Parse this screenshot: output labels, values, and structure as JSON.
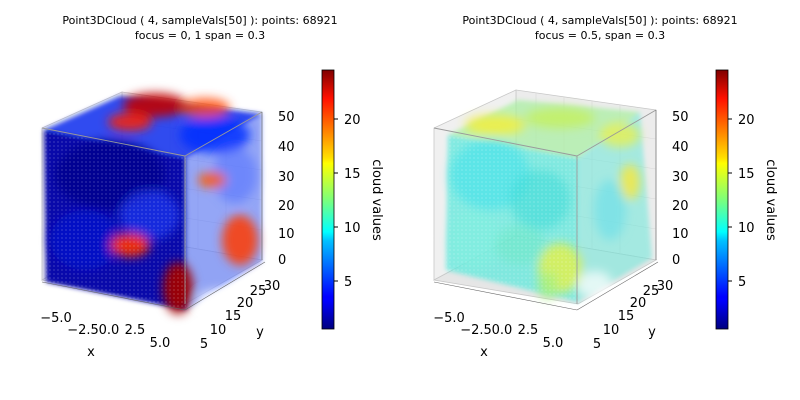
{
  "chart_data": [
    {
      "type": "scatter3d",
      "title_line1": "Point3DCloud ( 4, sampleVals[50] ):  points: 68921",
      "title_line2": "focus = 0, 1  span = 0.3",
      "xlabel": "x",
      "ylabel": "y",
      "zlabel": "",
      "x_ticks": [
        "−5.0",
        "−2.5",
        "0.0",
        "2.5",
        "5.0"
      ],
      "y_ticks": [
        "5",
        "10",
        "15",
        "20",
        "25",
        "30"
      ],
      "z_ticks": [
        "0",
        "10",
        "20",
        "30",
        "40",
        "50"
      ],
      "xlim": [
        -6,
        6
      ],
      "ylim": [
        5,
        30
      ],
      "zlim": [
        0,
        50
      ],
      "colorbar": {
        "label": "cloud values",
        "ticks": [
          "5",
          "10",
          "15",
          "20"
        ],
        "range": [
          0.2,
          24.2
        ],
        "colormap": "jet"
      },
      "points": 68921,
      "palette": {
        "deep_blue": "#00008f",
        "blue": "#0020ff",
        "light_blue": "#5f7fff",
        "red": "#ff3000",
        "dark_red": "#a80000",
        "orange": "#ff6a00"
      }
    },
    {
      "type": "scatter3d",
      "title_line1": "Point3DCloud ( 4, sampleVals[50] ):  points: 68921",
      "title_line2": "focus = 0.5,  span = 0.3",
      "xlabel": "x",
      "ylabel": "y",
      "zlabel": "",
      "x_ticks": [
        "−5.0",
        "−2.5",
        "0.0",
        "2.5",
        "5.0"
      ],
      "y_ticks": [
        "5",
        "10",
        "15",
        "20",
        "25",
        "30"
      ],
      "z_ticks": [
        "0",
        "10",
        "20",
        "30",
        "40",
        "50"
      ],
      "xlim": [
        -6,
        6
      ],
      "ylim": [
        5,
        30
      ],
      "zlim": [
        0,
        50
      ],
      "colorbar": {
        "label": "cloud values",
        "ticks": [
          "5",
          "10",
          "15",
          "20"
        ],
        "range": [
          0.2,
          24.2
        ],
        "colormap": "jet"
      },
      "points": 68921,
      "palette": {
        "cyan": "#4fe6e0",
        "light_cyan": "#7ff0d8",
        "green": "#a8f06a",
        "yellow": "#f4f04a",
        "pale_cyan": "#b8f4ec"
      }
    }
  ]
}
